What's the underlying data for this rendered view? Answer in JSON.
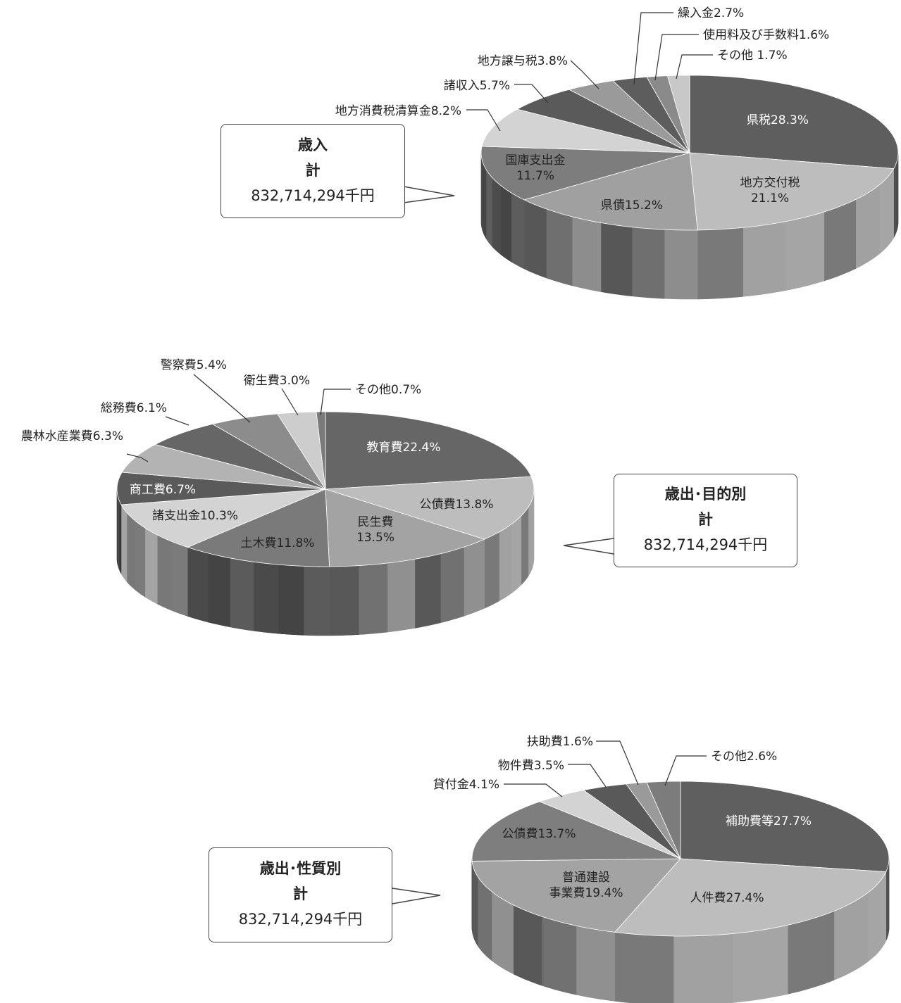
{
  "chart_data": [
    {
      "type": "pie",
      "title": "歳入",
      "total_label": "計",
      "total_value": "832,714,294千円",
      "slices": [
        {
          "label": "県税28.3%",
          "value": 28.3,
          "color": "#5e5e5e"
        },
        {
          "label": "地方交付税\n21.1%",
          "value": 21.1,
          "color": "#bdbdbd"
        },
        {
          "label": "県債15.2%",
          "value": 15.2,
          "color": "#a0a0a0"
        },
        {
          "label": "国庫支出金\n11.7%",
          "value": 11.7,
          "color": "#7d7d7d"
        },
        {
          "label": "地方消費税清算金8.2%",
          "value": 8.2,
          "color": "#d3d3d3"
        },
        {
          "label": "諸収入5.7%",
          "value": 5.7,
          "color": "#5a5a5a"
        },
        {
          "label": "地方譲与税3.8%",
          "value": 3.8,
          "color": "#9a9a9a"
        },
        {
          "label": "繰入金2.7%",
          "value": 2.7,
          "color": "#5d5d5d"
        },
        {
          "label": "使用料及び手数料1.6%",
          "value": 1.6,
          "color": "#8a8a8a"
        },
        {
          "label": "その他 1.7%",
          "value": 1.7,
          "color": "#c8c8c8"
        }
      ]
    },
    {
      "type": "pie",
      "title": "歳出･目的別",
      "total_label": "計",
      "total_value": "832,714,294千円",
      "slices": [
        {
          "label": "教育費22.4%",
          "value": 22.4,
          "color": "#666666"
        },
        {
          "label": "公債費13.8%",
          "value": 13.8,
          "color": "#bdbdbd"
        },
        {
          "label": "民生費\n13.5%",
          "value": 13.5,
          "color": "#a3a3a3"
        },
        {
          "label": "土木費11.8%",
          "value": 11.8,
          "color": "#7a7a7a"
        },
        {
          "label": "諸支出金10.3%",
          "value": 10.3,
          "color": "#d3d3d3"
        },
        {
          "label": "商工費6.7%",
          "value": 6.7,
          "color": "#5a5a5a"
        },
        {
          "label": "農林水産業費6.3%",
          "value": 6.3,
          "color": "#b3b3b3"
        },
        {
          "label": "総務費6.1%",
          "value": 6.1,
          "color": "#666666"
        },
        {
          "label": "警察費5.4%",
          "value": 5.4,
          "color": "#8c8c8c"
        },
        {
          "label": "衛生費3.0%",
          "value": 3.0,
          "color": "#cdcdcd"
        },
        {
          "label": "その他0.7%",
          "value": 0.7,
          "color": "#7a7a7a"
        }
      ]
    },
    {
      "type": "pie",
      "title": "歳出･性質別",
      "total_label": "計",
      "total_value": "832,714,294千円",
      "slices": [
        {
          "label": "補助費等27.7%",
          "value": 27.7,
          "color": "#5f5f5f"
        },
        {
          "label": "人件費27.4%",
          "value": 27.4,
          "color": "#bdbdbd"
        },
        {
          "label": "普通建設\n事業費19.4%",
          "value": 19.4,
          "color": "#a3a3a3"
        },
        {
          "label": "公債費13.7%",
          "value": 13.7,
          "color": "#7e7e7e"
        },
        {
          "label": "貸付金4.1%",
          "value": 4.1,
          "color": "#d3d3d3"
        },
        {
          "label": "物件費3.5%",
          "value": 3.5,
          "color": "#595959"
        },
        {
          "label": "扶助費1.6%",
          "value": 1.6,
          "color": "#9a9a9a"
        },
        {
          "label": "その他2.6%",
          "value": 2.6,
          "color": "#7c7c7c"
        }
      ]
    }
  ]
}
